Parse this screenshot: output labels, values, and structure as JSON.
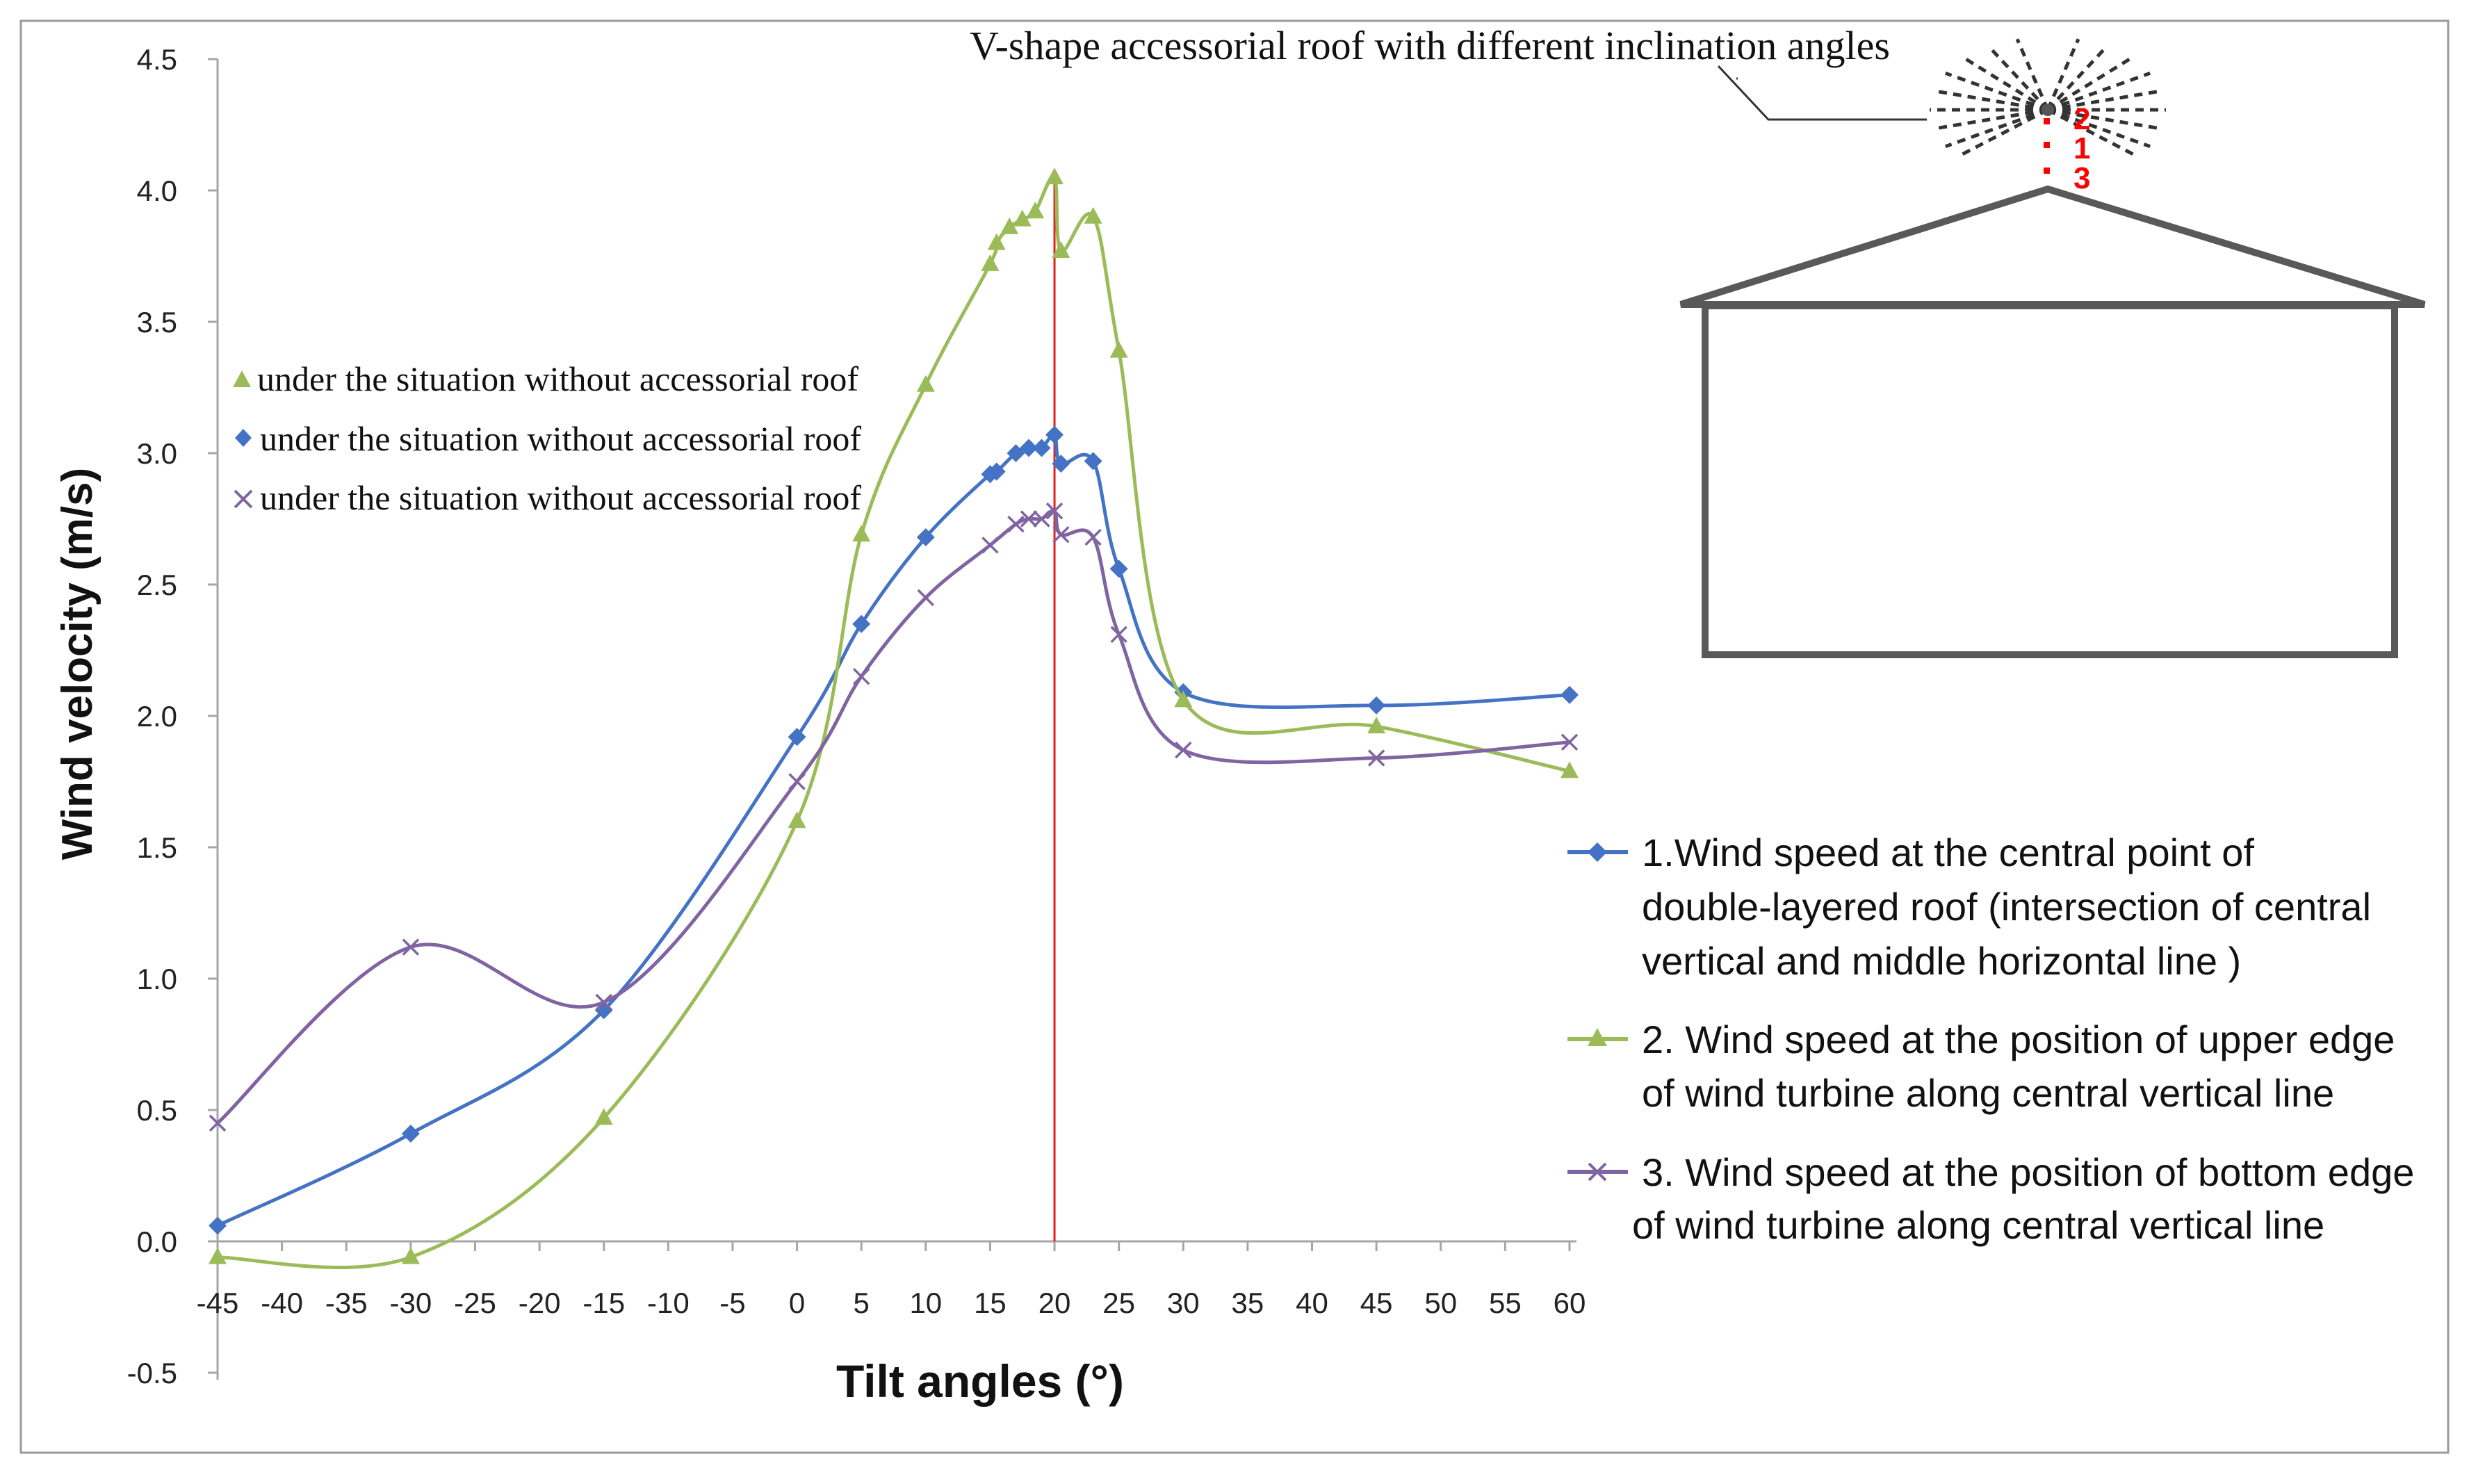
{
  "chart_data": {
    "type": "line",
    "title": "",
    "xlabel": "Tilt angles (°)",
    "ylabel": "Wind velocity (m/s)",
    "xlim": [
      -45,
      60
    ],
    "ylim": [
      -0.5,
      4.5
    ],
    "x_ticks": [
      "-45",
      "-40",
      "-35",
      "-30",
      "-25",
      "-20",
      "-15",
      "-10",
      "-5",
      "0",
      "5",
      "10",
      "15",
      "20",
      "25",
      "30",
      "35",
      "40",
      "45",
      "50",
      "55",
      "60"
    ],
    "y_ticks": [
      "4.5",
      "4.0",
      "3.5",
      "3.0",
      "2.5",
      "2.0",
      "1.5",
      "1.0",
      "0.5",
      "0.0",
      "-0.5"
    ],
    "reference_line_x": 20,
    "series": [
      {
        "name": "1.Wind speed at the central point of double-layered roof (intersection of central vertical and middle horizontal line )",
        "color": "#4472c4",
        "marker": "diamond",
        "x": [
          -45,
          -30,
          -15,
          0,
          5,
          10,
          15,
          15.5,
          17,
          18,
          19,
          20,
          20.5,
          23,
          25,
          30,
          45,
          60
        ],
        "y": [
          0.06,
          0.41,
          0.88,
          1.92,
          2.35,
          2.68,
          2.92,
          2.93,
          3.0,
          3.02,
          3.02,
          3.07,
          2.96,
          2.97,
          2.56,
          2.09,
          2.04,
          2.08
        ]
      },
      {
        "name": "2. Wind speed at the position of upper edge of wind turbine along central vertical line",
        "color": "#9bbb59",
        "marker": "triangle",
        "x": [
          -45,
          -30,
          -15,
          0,
          5,
          10,
          15,
          15.5,
          16.5,
          17.5,
          18.5,
          20,
          20.5,
          23,
          25,
          30,
          45,
          60
        ],
        "y": [
          -0.06,
          -0.06,
          0.47,
          1.6,
          2.69,
          3.26,
          3.72,
          3.8,
          3.86,
          3.89,
          3.92,
          4.05,
          3.77,
          3.9,
          3.39,
          2.06,
          1.96,
          1.79
        ]
      },
      {
        "name": "3. Wind speed at the position of bottom edge of wind turbine along central vertical line",
        "color": "#8064a2",
        "marker": "x",
        "x": [
          -45,
          -30,
          -15,
          0,
          5,
          10,
          15,
          17,
          18,
          19,
          20,
          20.5,
          23,
          25,
          30,
          45,
          60
        ],
        "y": [
          0.45,
          1.12,
          0.91,
          1.75,
          2.15,
          2.45,
          2.65,
          2.73,
          2.75,
          2.75,
          2.78,
          2.69,
          2.68,
          2.31,
          1.87,
          1.84,
          1.9
        ]
      }
    ],
    "inner_legend": [
      {
        "label": "under the situation without accessorial roof",
        "color": "#9bbb59",
        "marker": "triangle"
      },
      {
        "label": "under the situation without accessorial roof",
        "color": "#4472c4",
        "marker": "diamond"
      },
      {
        "label": "under the situation without accessorial roof",
        "color": "#8064a2",
        "marker": "x"
      }
    ],
    "outer_legend": [
      {
        "lines": [
          "1.Wind speed at the central point of",
          "double-layered roof (intersection of central",
          "vertical and middle horizontal line )"
        ],
        "color": "#4472c4",
        "marker": "diamond"
      },
      {
        "lines": [
          "2. Wind speed at the position of upper edge",
          "of wind turbine along central vertical line"
        ],
        "color": "#9bbb59",
        "marker": "triangle"
      },
      {
        "lines": [
          "3. Wind speed at the position of bottom edge",
          "of wind turbine along central vertical line"
        ],
        "color": "#8064a2",
        "marker": "x"
      }
    ],
    "annotation": {
      "text": "V-shape accessorial roof with different inclination angles",
      "labels": [
        "2",
        "1",
        "3"
      ],
      "label_color": "#ff0000"
    }
  }
}
